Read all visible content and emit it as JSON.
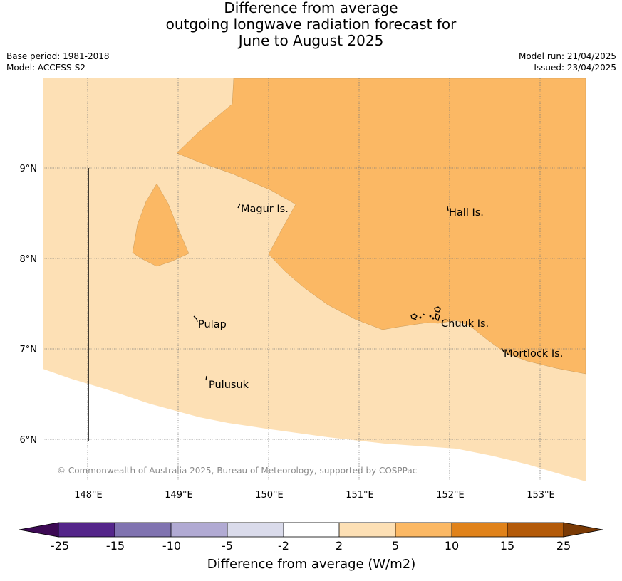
{
  "header": {
    "title_lines": [
      "Difference from average",
      "outgoing longwave radiation forecast for",
      "June to August 2025"
    ],
    "base_period": "Base period: 1981-2018",
    "model": "Model: ACCESS-S2",
    "model_run": "Model run: 21/04/2025",
    "issued": "Issued: 23/04/2025"
  },
  "map": {
    "lon_labels": [
      "148°E",
      "149°E",
      "150°E",
      "151°E",
      "152°E",
      "153°E"
    ],
    "lat_labels": [
      "9°N",
      "8°N",
      "7°N",
      "6°N"
    ],
    "places": [
      "Magur Is.",
      "Hall Is.",
      "Pulap",
      "Chuuk Is.",
      "Mortlock Is.",
      "Pulusuk"
    ],
    "credit": "© Commonwealth of Australia 2025, Bureau of Meteorology, supported by COSPPac",
    "colors": {
      "band_2_5": "#fde0b5",
      "band_5_10": "#fbb864",
      "grid": "#7a7a7a",
      "land": "#000000"
    }
  },
  "colorbar": {
    "title": "Difference from average (W/m2)",
    "labels": [
      "-25",
      "-15",
      "-10",
      "-5",
      "-2",
      "2",
      "5",
      "10",
      "15",
      "25"
    ],
    "colors": [
      "#3d0a55",
      "#54258a",
      "#8073b0",
      "#b1aad3",
      "#dadbeb",
      "#ffffff",
      "#fde0b5",
      "#fbb864",
      "#e0821a",
      "#b35a09",
      "#7a3a05"
    ]
  }
}
